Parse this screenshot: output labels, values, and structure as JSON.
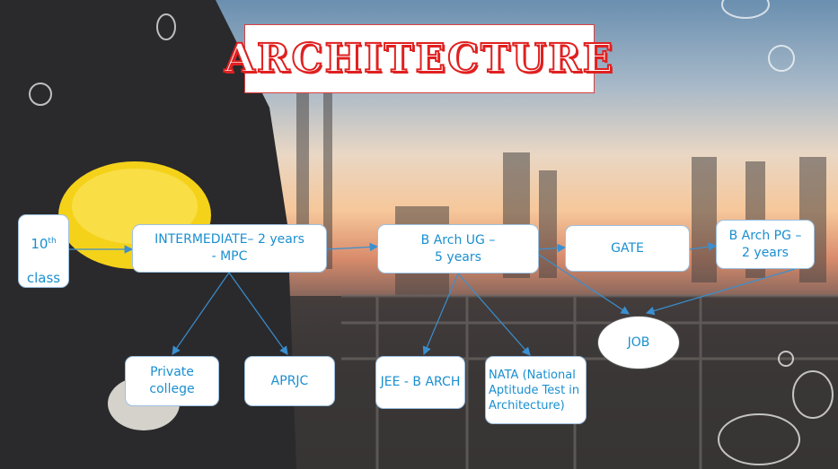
{
  "title": "ARCHITECTURE",
  "nodes": {
    "tenth_class_pre": "10",
    "tenth_class_sup": "th",
    "tenth_class_post": "class",
    "intermediate": "INTERMEDIATE– 2 years\n- MPC",
    "barch_ug": "B Arch UG –\n5 years",
    "gate": "GATE",
    "barch_pg": "B Arch PG –\n2 years",
    "job": "JOB",
    "private_college": "Private\ncollege",
    "aprjc": "APRJC",
    "jee_barch": "JEE - B ARCH",
    "nata": "NATA (National Aptitude Test in Architecture)"
  },
  "colors": {
    "node_text": "#1a8fd0",
    "arrow": "#3a8fd0",
    "title_red": "#e02020"
  }
}
